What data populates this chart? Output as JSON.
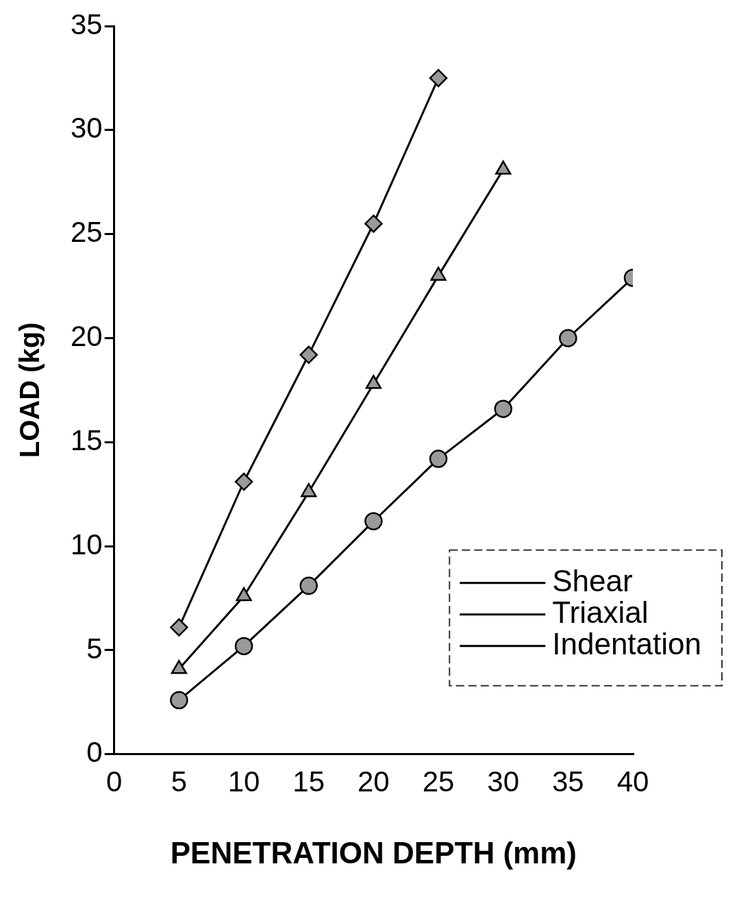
{
  "chart_data": {
    "type": "line",
    "xlabel": "PENETRATION DEPTH (mm)",
    "ylabel": "LOAD (kg)",
    "xlim": [
      0,
      40
    ],
    "xticks": [
      0,
      5,
      10,
      15,
      20,
      25,
      30,
      35,
      40
    ],
    "ylim": [
      0,
      35
    ],
    "yticks": [
      0,
      5,
      10,
      15,
      20,
      25,
      30,
      35
    ],
    "grid": false,
    "legend": "bottom right",
    "line_style": "solid",
    "series": [
      {
        "name": "Shear",
        "color": "#000000",
        "marker": "diamond",
        "x": [
          5,
          10,
          15,
          20,
          25
        ],
        "values": [
          6.1,
          13.1,
          19.2,
          25.5,
          32.5
        ]
      },
      {
        "name": "Triaxial",
        "color": "#000000",
        "marker": "circle",
        "x": [
          5,
          10,
          15,
          20,
          25,
          30,
          35,
          40
        ],
        "values": [
          2.6,
          5.2,
          8.1,
          11.2,
          14.2,
          16.6,
          20,
          22.9
        ]
      },
      {
        "name": "Indentation",
        "color": "#000000",
        "marker": "triangle",
        "x": [
          5,
          10,
          15,
          20,
          25,
          30
        ],
        "values": [
          4.1,
          7.6,
          12.6,
          17.8,
          23,
          28.1
        ]
      }
    ]
  }
}
